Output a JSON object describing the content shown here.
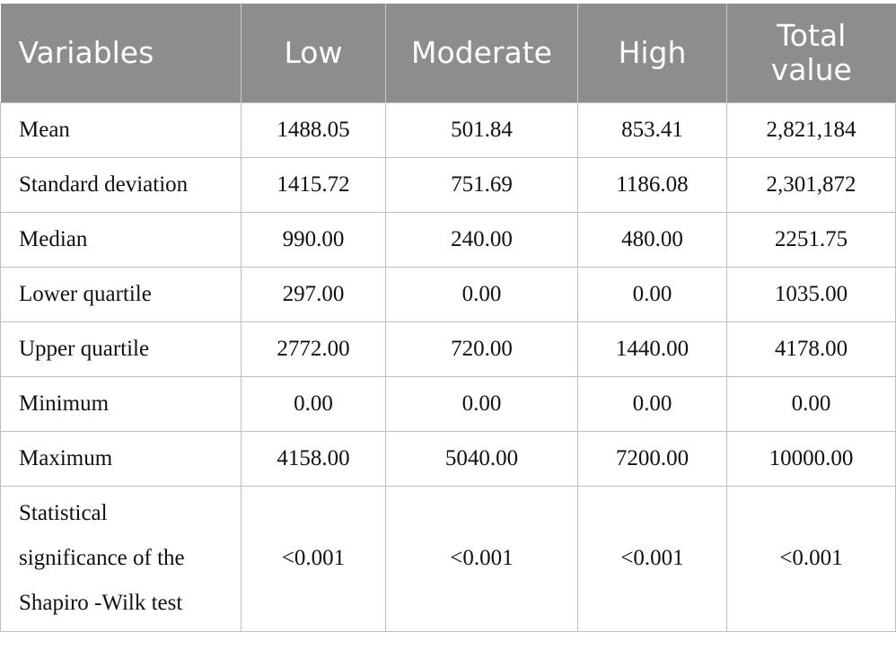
{
  "table": {
    "headers": [
      "Variables",
      "Low",
      "Moderate",
      "High",
      "Total value"
    ],
    "rows": [
      [
        "Mean",
        "1488.05",
        "501.84",
        "853.41",
        "2,821,184"
      ],
      [
        "Standard deviation",
        "1415.72",
        "751.69",
        "1186.08",
        "2,301,872"
      ],
      [
        "Median",
        "990.00",
        "240.00",
        "480.00",
        "2251.75"
      ],
      [
        "Lower quartile",
        "297.00",
        "0.00",
        "0.00",
        "1035.00"
      ],
      [
        "Upper quartile",
        "2772.00",
        "720.00",
        "1440.00",
        "4178.00"
      ],
      [
        "Minimum",
        "0.00",
        "0.00",
        "0.00",
        "0.00"
      ],
      [
        "Maximum",
        "4158.00",
        "5040.00",
        "7200.00",
        "10000.00"
      ],
      [
        "Statistical significance of the Shapiro -Wilk test",
        "<0.001",
        "<0.001",
        "<0.001",
        "<0.001"
      ]
    ]
  },
  "colors": {
    "header_background": "#8c8e8c",
    "header_text": "#ffffff",
    "grid_lines": "#bdbdbd"
  }
}
